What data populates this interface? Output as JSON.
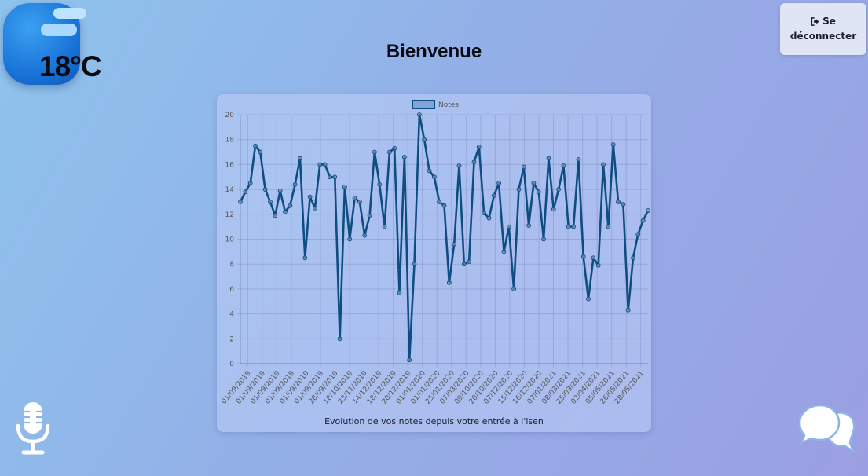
{
  "weather": {
    "temperature": "18°C",
    "icon": "cloud-weather-icon"
  },
  "header": {
    "title": "Bienvenue",
    "logout_line1": "Se",
    "logout_line2": "déconnecter",
    "logout_icon": "sign-out-icon"
  },
  "caption": "Evolution de vos notes depuis votre entrée à l'isen",
  "icons": {
    "mic": "microphone-icon",
    "chat": "chat-bubbles-icon"
  },
  "chart_data": {
    "type": "line",
    "legend": {
      "label": "Notes",
      "placement": "top-center"
    },
    "ylim": [
      0,
      20
    ],
    "yticks": [
      0,
      2,
      4,
      6,
      8,
      10,
      12,
      14,
      16,
      18,
      20
    ],
    "grid": true,
    "x_tick_labels": [
      "01/09/2019",
      "01/09/2019",
      "01/09/2019",
      "01/09/2019",
      "01/09/2019",
      "01/09/2019",
      "28/09/2019",
      "18/10/2019",
      "23/11/2019",
      "14/12/2019",
      "18/12/2019",
      "20/12/2019",
      "01/01/2020",
      "01/01/2020",
      "25/01/2020",
      "07/03/2020",
      "09/10/2020",
      "20/10/2020",
      "07/12/2020",
      "15/12/2020",
      "16/12/2020",
      "07/01/2021",
      "08/03/2021",
      "25/03/2021",
      "02/04/2021",
      "05/05/2021",
      "26/05/2021",
      "28/05/2021"
    ],
    "series": [
      {
        "name": "Notes",
        "color": "#0d4d82",
        "values": [
          13,
          13.8,
          14.5,
          17.5,
          17,
          14,
          13,
          11.9,
          13.9,
          12.2,
          12.7,
          14.4,
          16.5,
          8.5,
          13.4,
          12.5,
          16,
          16,
          15,
          15,
          2,
          14.2,
          10,
          13.3,
          13,
          10.3,
          11.9,
          17,
          14.4,
          11,
          17,
          17.3,
          5.7,
          16.6,
          0.3,
          8,
          20,
          18,
          15.5,
          15,
          13,
          12.7,
          6.5,
          9.6,
          15.9,
          8,
          8.2,
          16.2,
          17.4,
          12.1,
          11.7,
          13.5,
          14.5,
          9,
          11,
          6,
          14,
          15.8,
          11.1,
          14.5,
          13.8,
          10,
          16.5,
          12.4,
          14,
          15.9,
          11,
          11,
          16.4,
          8.6,
          5.2,
          8.5,
          7.9,
          16,
          11,
          17.6,
          13,
          12.8,
          4.3,
          8.5,
          10.4,
          11.5,
          12.3
        ]
      }
    ]
  }
}
